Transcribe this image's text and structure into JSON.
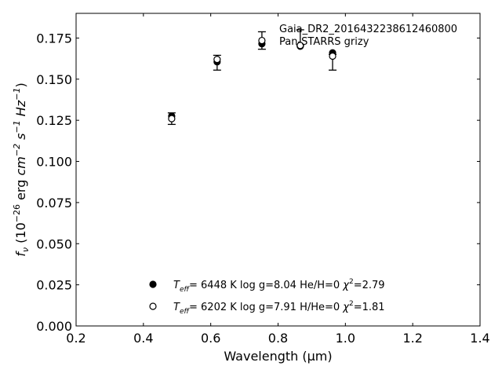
{
  "chart_data": {
    "type": "scatter",
    "xlabel": "Wavelength (μm)",
    "ylabel": "f_ν (10^−26 erg cm^−2 s^−1 Hz^−1)",
    "xlim": [
      0.2,
      1.4
    ],
    "ylim": [
      0.0,
      0.19
    ],
    "x_ticks": [
      "0.2",
      "0.4",
      "0.6",
      "0.8",
      "1.0",
      "1.2",
      "1.4"
    ],
    "y_ticks": [
      "0.000",
      "0.025",
      "0.050",
      "0.075",
      "0.100",
      "0.125",
      "0.150",
      "0.175"
    ],
    "grid": false,
    "annotation_lines": [
      "Gaia_DR2_2016432238612460800",
      "Pan-STARRS grizy"
    ],
    "observed": {
      "x": [
        0.484,
        0.619,
        0.752,
        0.866,
        0.962
      ],
      "y": [
        0.126,
        0.16,
        0.1735,
        0.1705,
        0.165
      ],
      "yerr_low": [
        0.0035,
        0.0045,
        0.0053,
        0.0,
        0.0095
      ],
      "yerr_high": [
        0.0035,
        0.0045,
        0.0053,
        0.0095,
        0.0
      ]
    },
    "series": [
      {
        "marker": "filled-circle",
        "label_parts": [
          "T",
          "eff",
          "=  6448 K  log g=8.04  He/H=0  ",
          "χ",
          "2",
          "=2.79"
        ],
        "x": [
          0.484,
          0.619,
          0.752,
          0.866,
          0.962
        ],
        "y": [
          0.1275,
          0.1605,
          0.1715,
          0.17,
          0.166
        ]
      },
      {
        "marker": "open-circle",
        "label_parts": [
          "T",
          "eff",
          "=  6202 K  log g=7.91  H/He=0  ",
          "χ",
          "2",
          "=1.81"
        ],
        "x": [
          0.484,
          0.619,
          0.752,
          0.866,
          0.962
        ],
        "y": [
          0.126,
          0.162,
          0.1735,
          0.1705,
          0.164
        ]
      }
    ]
  }
}
